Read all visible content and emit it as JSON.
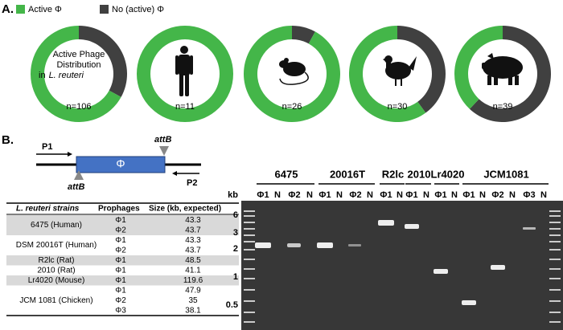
{
  "panel_a": {
    "label": "A.",
    "legend": {
      "labels": [
        "Active Φ",
        "No (active) Φ"
      ],
      "colors": [
        "#44b649",
        "#404040"
      ]
    }
  },
  "chart_data": [
    {
      "type": "donut",
      "title": [
        "Active Phage",
        "Distribution",
        "in",
        "L. reuteri"
      ],
      "n_label": "n=106",
      "values": [
        67,
        33
      ]
    },
    {
      "type": "donut",
      "n_label": "n=11",
      "values": [
        100,
        0
      ]
    },
    {
      "type": "donut",
      "n_label": "n=26",
      "values": [
        92,
        8
      ]
    },
    {
      "type": "donut",
      "n_label": "n=30",
      "values": [
        60,
        40
      ]
    },
    {
      "type": "donut",
      "n_label": "n=39",
      "values": [
        38,
        62
      ]
    }
  ],
  "panel_b": {
    "label": "B.",
    "diagram": {
      "p1": "P1",
      "p2": "P2",
      "att_top": "attB",
      "att_bottom": "attB",
      "phage": "Φ"
    },
    "table": {
      "headers": [
        "L. reuteri strains",
        "Prophages",
        "Size (kb, expected)"
      ],
      "rows": [
        {
          "strain": "6475 (Human)",
          "prophages": [
            [
              "Φ1",
              "43.3"
            ],
            [
              "Φ2",
              "43.7"
            ]
          ]
        },
        {
          "strain": "DSM 20016T (Human)",
          "prophages": [
            [
              "Φ1",
              "43.3"
            ],
            [
              "Φ2",
              "43.7"
            ]
          ]
        },
        {
          "strain": "R2lc (Rat)",
          "prophages": [
            [
              "Φ1",
              "48.5"
            ]
          ]
        },
        {
          "strain": "2010 (Rat)",
          "prophages": [
            [
              "Φ1",
              "41.1"
            ]
          ]
        },
        {
          "strain": "Lr4020 (Mouse)",
          "prophages": [
            [
              "Φ1",
              "119.6"
            ]
          ]
        },
        {
          "strain": "JCM 1081 (Chicken)",
          "prophages": [
            [
              "Φ1",
              "47.9"
            ],
            [
              "Φ2",
              "35"
            ],
            [
              "Φ3",
              "38.1"
            ]
          ]
        }
      ]
    },
    "gel": {
      "size_unit": "kb",
      "size_marks": [
        "6",
        "3",
        "2",
        "1",
        "0.5"
      ],
      "groups": [
        {
          "name": "6475",
          "lanes": [
            "Φ1",
            "N",
            "Φ2",
            "N"
          ]
        },
        {
          "name": "20016T",
          "lanes": [
            "Φ1",
            "N",
            "Φ2",
            "N"
          ]
        },
        {
          "name": "R2lc",
          "lanes": [
            "Φ1",
            "N"
          ]
        },
        {
          "name": "2010",
          "lanes": [
            "Φ1",
            "N"
          ]
        },
        {
          "name": "Lr4020",
          "lanes": [
            "Φ1",
            "N"
          ]
        },
        {
          "name": "JCM1081",
          "lanes": [
            "Φ1",
            "N",
            "Φ2",
            "N",
            "Φ3",
            "N"
          ]
        }
      ]
    }
  }
}
